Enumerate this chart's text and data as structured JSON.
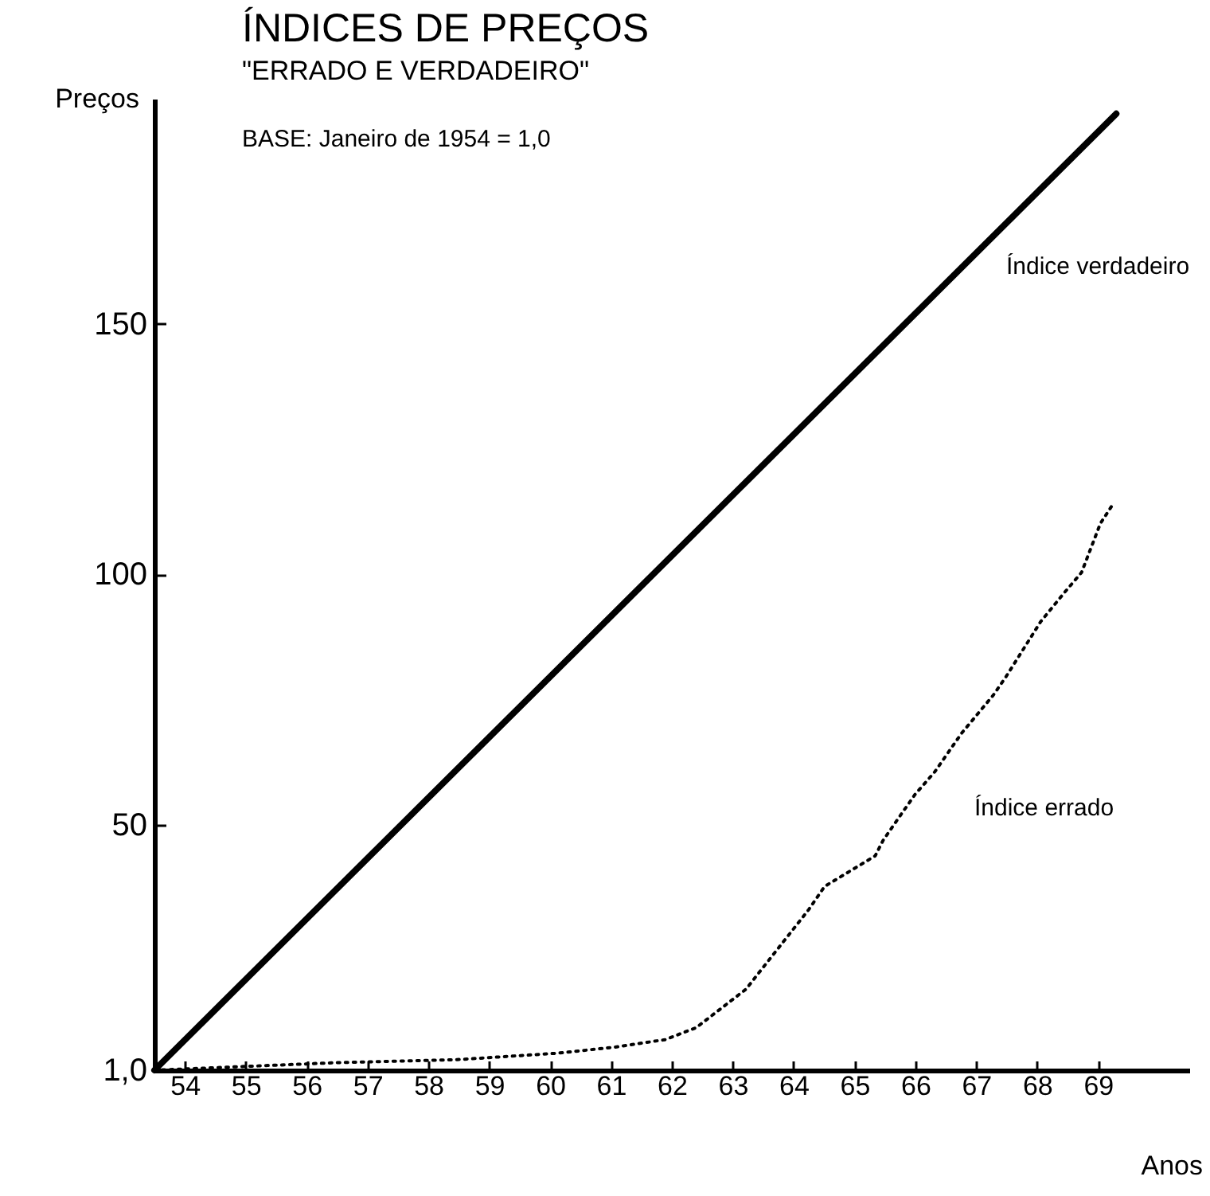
{
  "chart_data": {
    "type": "line",
    "title": "ÍNDICES DE PREÇOS",
    "subtitle": "\"ERRADO E VERDADEIRO\"",
    "xlabel": "Anos",
    "ylabel": "Preços",
    "annotations": [
      "BASE: Janeiro de 1954 = 1,0"
    ],
    "xlim": [
      54,
      71
    ],
    "ylim": [
      1,
      195
    ],
    "xticks": [
      {
        "value": 54.5,
        "label": "54"
      },
      {
        "value": 55.5,
        "label": "55"
      },
      {
        "value": 56.5,
        "label": "56"
      },
      {
        "value": 57.5,
        "label": "57"
      },
      {
        "value": 58.5,
        "label": "58"
      },
      {
        "value": 59.5,
        "label": "59"
      },
      {
        "value": 60.5,
        "label": "60"
      },
      {
        "value": 61.5,
        "label": "61"
      },
      {
        "value": 62.5,
        "label": "62"
      },
      {
        "value": 63.5,
        "label": "63"
      },
      {
        "value": 64.5,
        "label": "64"
      },
      {
        "value": 65.5,
        "label": "65"
      },
      {
        "value": 66.5,
        "label": "66"
      },
      {
        "value": 67.5,
        "label": "67"
      },
      {
        "value": 68.5,
        "label": "68"
      },
      {
        "value": 69.5,
        "label": "69"
      }
    ],
    "yticks": [
      {
        "value": 1,
        "label": "1,0"
      },
      50,
      100,
      150
    ],
    "grid": false,
    "marker": "none",
    "series": [
      {
        "name": "Índice verdadeiro",
        "color": "#000000",
        "line_style": "solid",
        "x": [
          54,
          69.8
        ],
        "values": [
          1,
          192
        ]
      },
      {
        "name": "Índice errado",
        "color": "#000000",
        "line_style": "dotted",
        "x": [
          54,
          56.98,
          58.97,
          60.63,
          61.56,
          62.39,
          62.9,
          63.72,
          63.9,
          64.75,
          65.01,
          65.84,
          65.97,
          66.49,
          66.82,
          67.26,
          67.78,
          67.99,
          68.56,
          68.95,
          69.23,
          69.54,
          69.75
        ],
        "values": [
          1,
          2.5,
          3.1,
          4.4,
          5.6,
          7.1,
          9.5,
          17.2,
          20,
          33.1,
          37.7,
          43.8,
          46.9,
          56,
          60.6,
          68.3,
          75.9,
          79.6,
          90.6,
          96.4,
          100.4,
          110.2,
          114.1
        ]
      }
    ]
  }
}
